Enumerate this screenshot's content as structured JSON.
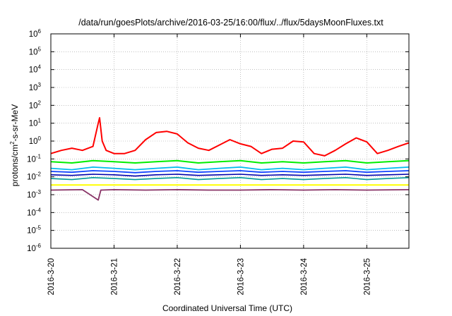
{
  "chart_data": {
    "type": "line",
    "title": "/data/run/goesPlots/archive/2016-03-25/16:00/flux/../flux/5daysMoonFluxes.txt",
    "xlabel": "Coordinated Universal Time (UTC)",
    "ylabel": "protons/cm2-s-sr-MeV",
    "ylabel_parts": {
      "pre": "protons/cm",
      "sup": "2",
      "post": "-s-sr-MeV"
    },
    "y_scale": "log",
    "ylim": [
      1e-06,
      1000000.0
    ],
    "y_ticks": [
      {
        "value": 1e-06,
        "base": "10",
        "exp": "-6"
      },
      {
        "value": 1e-05,
        "base": "10",
        "exp": "-5"
      },
      {
        "value": 0.0001,
        "base": "10",
        "exp": "-4"
      },
      {
        "value": 0.001,
        "base": "10",
        "exp": "-3"
      },
      {
        "value": 0.01,
        "base": "10",
        "exp": "-2"
      },
      {
        "value": 0.1,
        "base": "10",
        "exp": "-1"
      },
      {
        "value": 1,
        "base": "10",
        "exp": "0"
      },
      {
        "value": 10,
        "base": "10",
        "exp": "1"
      },
      {
        "value": 100,
        "base": "10",
        "exp": "2"
      },
      {
        "value": 1000,
        "base": "10",
        "exp": "3"
      },
      {
        "value": 10000,
        "base": "10",
        "exp": "4"
      },
      {
        "value": 100000,
        "base": "10",
        "exp": "5"
      },
      {
        "value": 1000000,
        "base": "10",
        "exp": "6"
      }
    ],
    "xlim": [
      "2016-03-20 00:00",
      "2016-03-25 16:00"
    ],
    "x_ticks": [
      {
        "value": "2016-03-20 00:00",
        "label": "2016-3-20"
      },
      {
        "value": "2016-03-21 00:00",
        "label": "2016-3-21"
      },
      {
        "value": "2016-03-22 00:00",
        "label": "2016-3-22"
      },
      {
        "value": "2016-03-23 00:00",
        "label": "2016-3-23"
      },
      {
        "value": "2016-03-24 00:00",
        "label": "2016-3-24"
      },
      {
        "value": "2016-03-25 00:00",
        "label": "2016-3-25"
      }
    ],
    "grid": true,
    "series": [
      {
        "color": "#ff0000",
        "width": 2,
        "x": [
          "2016-03-20 00:00",
          "2016-03-20 04:00",
          "2016-03-20 08:00",
          "2016-03-20 12:00",
          "2016-03-20 16:00",
          "2016-03-20 18:00",
          "2016-03-20 18:30",
          "2016-03-20 19:30",
          "2016-03-20 21:00",
          "2016-03-21 00:00",
          "2016-03-21 04:00",
          "2016-03-21 08:00",
          "2016-03-21 12:00",
          "2016-03-21 16:00",
          "2016-03-21 20:00",
          "2016-03-22 00:00",
          "2016-03-22 04:00",
          "2016-03-22 08:00",
          "2016-03-22 12:00",
          "2016-03-22 16:00",
          "2016-03-22 20:00",
          "2016-03-23 00:00",
          "2016-03-23 04:00",
          "2016-03-23 08:00",
          "2016-03-23 12:00",
          "2016-03-23 16:00",
          "2016-03-23 20:00",
          "2016-03-24 00:00",
          "2016-03-24 04:00",
          "2016-03-24 08:00",
          "2016-03-24 12:00",
          "2016-03-24 16:00",
          "2016-03-24 20:00",
          "2016-03-25 00:00",
          "2016-03-25 04:00",
          "2016-03-25 08:00",
          "2016-03-25 12:00",
          "2016-03-25 16:00"
        ],
        "values": [
          0.2,
          0.3,
          0.4,
          0.3,
          0.5,
          10,
          20,
          1,
          0.3,
          0.2,
          0.2,
          0.3,
          1.2,
          3,
          3.5,
          2.5,
          0.8,
          0.4,
          0.3,
          0.6,
          1.2,
          0.7,
          0.5,
          0.2,
          0.35,
          0.4,
          1.0,
          0.9,
          0.2,
          0.15,
          0.3,
          0.7,
          1.5,
          0.9,
          0.2,
          0.3,
          0.5,
          0.8
        ]
      },
      {
        "color": "#00ee00",
        "width": 2,
        "x": [
          "2016-03-20 00:00",
          "2016-03-20 08:00",
          "2016-03-20 16:00",
          "2016-03-21 00:00",
          "2016-03-21 08:00",
          "2016-03-21 16:00",
          "2016-03-22 00:00",
          "2016-03-22 08:00",
          "2016-03-22 16:00",
          "2016-03-23 00:00",
          "2016-03-23 08:00",
          "2016-03-23 16:00",
          "2016-03-24 00:00",
          "2016-03-24 08:00",
          "2016-03-24 16:00",
          "2016-03-25 00:00",
          "2016-03-25 08:00",
          "2016-03-25 16:00"
        ],
        "values": [
          0.07,
          0.06,
          0.08,
          0.07,
          0.06,
          0.07,
          0.08,
          0.06,
          0.07,
          0.08,
          0.06,
          0.07,
          0.06,
          0.07,
          0.08,
          0.06,
          0.07,
          0.08
        ]
      },
      {
        "color": "#00bbee",
        "width": 1.8,
        "x": [
          "2016-03-20 00:00",
          "2016-03-20 08:00",
          "2016-03-20 16:00",
          "2016-03-21 00:00",
          "2016-03-21 08:00",
          "2016-03-21 16:00",
          "2016-03-22 00:00",
          "2016-03-22 08:00",
          "2016-03-22 16:00",
          "2016-03-23 00:00",
          "2016-03-23 08:00",
          "2016-03-23 16:00",
          "2016-03-24 00:00",
          "2016-03-24 08:00",
          "2016-03-24 16:00",
          "2016-03-25 00:00",
          "2016-03-25 08:00",
          "2016-03-25 16:00"
        ],
        "values": [
          0.03,
          0.025,
          0.035,
          0.03,
          0.025,
          0.03,
          0.035,
          0.025,
          0.03,
          0.035,
          0.025,
          0.03,
          0.025,
          0.03,
          0.035,
          0.025,
          0.03,
          0.035
        ]
      },
      {
        "color": "#1144ff",
        "width": 1.8,
        "x": [
          "2016-03-20 00:00",
          "2016-03-20 08:00",
          "2016-03-20 16:00",
          "2016-03-21 00:00",
          "2016-03-21 08:00",
          "2016-03-21 16:00",
          "2016-03-22 00:00",
          "2016-03-22 08:00",
          "2016-03-22 16:00",
          "2016-03-23 00:00",
          "2016-03-23 08:00",
          "2016-03-23 16:00",
          "2016-03-24 00:00",
          "2016-03-24 08:00",
          "2016-03-24 16:00",
          "2016-03-25 00:00",
          "2016-03-25 08:00",
          "2016-03-25 16:00"
        ],
        "values": [
          0.02,
          0.018,
          0.022,
          0.02,
          0.017,
          0.02,
          0.022,
          0.018,
          0.02,
          0.022,
          0.018,
          0.02,
          0.018,
          0.02,
          0.022,
          0.018,
          0.02,
          0.022
        ]
      },
      {
        "color": "#0000aa",
        "width": 1.6,
        "x": [
          "2016-03-20 00:00",
          "2016-03-20 08:00",
          "2016-03-20 16:00",
          "2016-03-21 00:00",
          "2016-03-21 08:00",
          "2016-03-21 16:00",
          "2016-03-22 00:00",
          "2016-03-22 08:00",
          "2016-03-22 16:00",
          "2016-03-23 00:00",
          "2016-03-23 08:00",
          "2016-03-23 16:00",
          "2016-03-24 00:00",
          "2016-03-24 08:00",
          "2016-03-24 16:00",
          "2016-03-25 00:00",
          "2016-03-25 08:00",
          "2016-03-25 16:00"
        ],
        "values": [
          0.013,
          0.012,
          0.014,
          0.013,
          0.011,
          0.013,
          0.014,
          0.012,
          0.013,
          0.014,
          0.012,
          0.013,
          0.012,
          0.013,
          0.014,
          0.012,
          0.013,
          0.014
        ]
      },
      {
        "color": "#009999",
        "width": 1.6,
        "x": [
          "2016-03-20 00:00",
          "2016-03-20 08:00",
          "2016-03-20 16:00",
          "2016-03-21 00:00",
          "2016-03-21 08:00",
          "2016-03-21 16:00",
          "2016-03-22 00:00",
          "2016-03-22 08:00",
          "2016-03-22 16:00",
          "2016-03-23 00:00",
          "2016-03-23 08:00",
          "2016-03-23 16:00",
          "2016-03-24 00:00",
          "2016-03-24 08:00",
          "2016-03-24 16:00",
          "2016-03-25 00:00",
          "2016-03-25 08:00",
          "2016-03-25 16:00"
        ],
        "values": [
          0.008,
          0.007,
          0.009,
          0.008,
          0.007,
          0.008,
          0.009,
          0.007,
          0.008,
          0.009,
          0.007,
          0.008,
          0.007,
          0.008,
          0.009,
          0.007,
          0.008,
          0.009
        ]
      },
      {
        "color": "#ffff00",
        "width": 2,
        "x": [
          "2016-03-20 00:00",
          "2016-03-21 00:00",
          "2016-03-22 00:00",
          "2016-03-23 00:00",
          "2016-03-24 00:00",
          "2016-03-25 00:00",
          "2016-03-25 16:00"
        ],
        "values": [
          0.0035,
          0.0035,
          0.0035,
          0.0035,
          0.0035,
          0.0035,
          0.0035
        ]
      },
      {
        "color": "#883366",
        "width": 1.8,
        "x": [
          "2016-03-20 00:00",
          "2016-03-20 12:00",
          "2016-03-20 18:00",
          "2016-03-20 19:00",
          "2016-03-21 00:00",
          "2016-03-21 12:00",
          "2016-03-22 00:00",
          "2016-03-22 12:00",
          "2016-03-23 00:00",
          "2016-03-23 12:00",
          "2016-03-24 00:00",
          "2016-03-24 12:00",
          "2016-03-25 00:00",
          "2016-03-25 16:00"
        ],
        "values": [
          0.0018,
          0.0019,
          0.0005,
          0.0018,
          0.0019,
          0.0018,
          0.0019,
          0.0018,
          0.0018,
          0.0019,
          0.0018,
          0.0019,
          0.0018,
          0.0019
        ]
      }
    ]
  }
}
